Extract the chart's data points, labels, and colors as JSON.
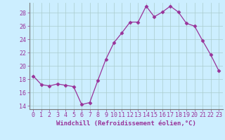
{
  "x": [
    0,
    1,
    2,
    3,
    4,
    5,
    6,
    7,
    8,
    9,
    10,
    11,
    12,
    13,
    14,
    15,
    16,
    17,
    18,
    19,
    20,
    21,
    22,
    23
  ],
  "y": [
    18.5,
    17.2,
    17.0,
    17.3,
    17.1,
    16.9,
    14.2,
    14.5,
    17.8,
    21.0,
    23.5,
    25.0,
    26.6,
    26.6,
    29.0,
    27.4,
    28.1,
    29.0,
    28.1,
    26.4,
    26.0,
    23.8,
    21.7,
    19.3
  ],
  "xlabel": "Windchill (Refroidissement éolien,°C)",
  "ylim": [
    13.5,
    29.5
  ],
  "xlim": [
    -0.5,
    23.5
  ],
  "yticks": [
    14,
    16,
    18,
    20,
    22,
    24,
    26,
    28
  ],
  "xticks": [
    0,
    1,
    2,
    3,
    4,
    5,
    6,
    7,
    8,
    9,
    10,
    11,
    12,
    13,
    14,
    15,
    16,
    17,
    18,
    19,
    20,
    21,
    22,
    23
  ],
  "line_color": "#993399",
  "marker": "D",
  "marker_size": 2.5,
  "bg_color": "#cceeff",
  "grid_color": "#aacccc",
  "font_color": "#993399",
  "xlabel_fontsize": 6.5,
  "tick_fontsize": 6.0
}
